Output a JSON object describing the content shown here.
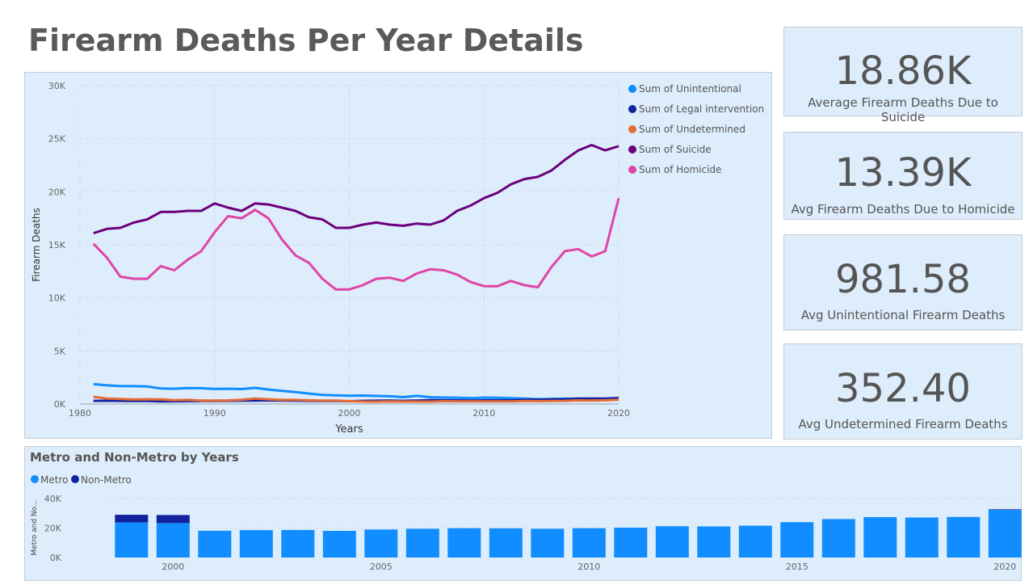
{
  "page": {
    "title": "Firearm Deaths Per Year Details"
  },
  "cards": [
    {
      "value": "18.86K",
      "label": "Average Firearm Deaths Due to Suicide"
    },
    {
      "value": "13.39K",
      "label": "Avg Firearm Deaths Due to Homicide"
    },
    {
      "value": "981.58",
      "label": "Avg Unintentional Firearm Deaths"
    },
    {
      "value": "352.40",
      "label": "Avg Undetermined Firearm Deaths"
    }
  ],
  "chart_data": [
    {
      "type": "line",
      "xlabel": "Years",
      "ylabel": "Firearm Deaths",
      "xlim": [
        1980,
        2020
      ],
      "ylim": [
        0,
        30000
      ],
      "x_ticks": [
        "1980",
        "1990",
        "2000",
        "2010",
        "2020"
      ],
      "y_ticks": [
        "0K",
        "5K",
        "10K",
        "15K",
        "20K",
        "25K",
        "30K"
      ],
      "grid": true,
      "legend_position": "top-right",
      "x": [
        1981,
        1982,
        1983,
        1984,
        1985,
        1986,
        1987,
        1988,
        1989,
        1990,
        1991,
        1992,
        1993,
        1994,
        1995,
        1996,
        1997,
        1998,
        1999,
        2000,
        2001,
        2002,
        2003,
        2004,
        2005,
        2006,
        2007,
        2008,
        2009,
        2010,
        2011,
        2012,
        2013,
        2014,
        2015,
        2016,
        2017,
        2018,
        2019,
        2020
      ],
      "series": [
        {
          "name": "Sum of Unintentional",
          "color": "#118dff",
          "values": [
            1870,
            1760,
            1700,
            1680,
            1650,
            1460,
            1440,
            1500,
            1490,
            1420,
            1440,
            1410,
            1520,
            1360,
            1230,
            1130,
            980,
            860,
            820,
            780,
            800,
            760,
            730,
            650,
            770,
            640,
            610,
            590,
            550,
            600,
            590,
            550,
            510,
            460,
            480,
            500,
            490,
            480,
            490,
            540
          ]
        },
        {
          "name": "Sum of Legal intervention",
          "color": "#12239e",
          "values": [
            300,
            310,
            300,
            290,
            280,
            250,
            260,
            270,
            280,
            290,
            300,
            310,
            330,
            340,
            320,
            310,
            300,
            290,
            300,
            270,
            300,
            310,
            320,
            300,
            330,
            360,
            350,
            340,
            330,
            340,
            350,
            340,
            380,
            400,
            440,
            450,
            510,
            520,
            510,
            560
          ]
        },
        {
          "name": "Sum of Undetermined",
          "color": "#e66c37",
          "values": [
            680,
            520,
            480,
            430,
            450,
            440,
            360,
            390,
            320,
            330,
            340,
            400,
            520,
            450,
            390,
            390,
            350,
            320,
            320,
            270,
            230,
            220,
            240,
            230,
            230,
            220,
            270,
            240,
            250,
            240,
            250,
            240,
            280,
            270,
            280,
            300,
            340,
            330,
            350,
            400
          ]
        },
        {
          "name": "Sum of Suicide",
          "color": "#6b007b",
          "values": [
            16100,
            16500,
            16600,
            17100,
            17400,
            18100,
            18100,
            18200,
            18200,
            18900,
            18500,
            18200,
            18900,
            18800,
            18500,
            18200,
            17600,
            17400,
            16600,
            16600,
            16900,
            17100,
            16900,
            16800,
            17000,
            16900,
            17300,
            18200,
            18700,
            19400,
            19900,
            20700,
            21200,
            21400,
            22000,
            23000,
            23900,
            24400,
            23900,
            24300
          ]
        },
        {
          "name": "Sum of Homicide",
          "color": "#e044a7",
          "values": [
            15100,
            13800,
            12000,
            11800,
            11800,
            13000,
            12600,
            13600,
            14400,
            16200,
            17700,
            17500,
            18300,
            17500,
            15500,
            14000,
            13300,
            11800,
            10800,
            10800,
            11200,
            11800,
            11900,
            11600,
            12300,
            12700,
            12600,
            12200,
            11500,
            11100,
            11100,
            11600,
            11200,
            11000,
            12900,
            14400,
            14600,
            13900,
            14400,
            19400
          ]
        }
      ]
    },
    {
      "type": "bar",
      "title": "Metro and Non-Metro by Years",
      "ylabel": "Metro and No...",
      "ylim": [
        0,
        40000
      ],
      "y_ticks": [
        "0K",
        "20K",
        "40K"
      ],
      "x_ticks": [
        "2000",
        "2005",
        "2010",
        "2015",
        "2020"
      ],
      "stacked": true,
      "legend_position": "top-left",
      "categories": [
        "1999",
        "2000",
        "2001",
        "2002",
        "2003",
        "2004",
        "2005",
        "2006",
        "2007",
        "2008",
        "2009",
        "2010",
        "2011",
        "2012",
        "2013",
        "2014",
        "2015",
        "2016",
        "2017",
        "2018",
        "2019",
        "2020"
      ],
      "series": [
        {
          "name": "Metro",
          "color": "#118dff",
          "values": [
            23800,
            23300,
            18200,
            18600,
            18700,
            18100,
            19000,
            19500,
            19900,
            19800,
            19500,
            19900,
            20300,
            21200,
            21100,
            21600,
            24000,
            26100,
            27400,
            27100,
            27500,
            32300
          ]
        },
        {
          "name": "Non-Metro",
          "color": "#12239e",
          "values": [
            5200,
            5500,
            0,
            0,
            0,
            0,
            0,
            0,
            0,
            0,
            0,
            0,
            0,
            0,
            0,
            0,
            0,
            0,
            0,
            0,
            0,
            400
          ]
        }
      ]
    }
  ]
}
